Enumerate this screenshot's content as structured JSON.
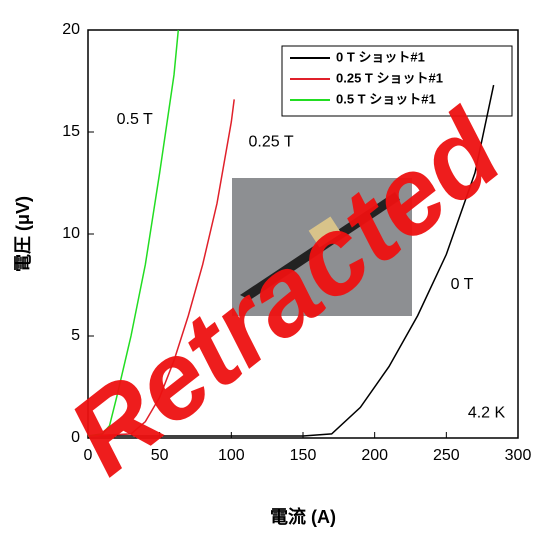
{
  "chart_data": {
    "type": "line",
    "xlabel": "電流 (A)",
    "ylabel": "電圧 (μV)",
    "xlim": [
      0,
      300
    ],
    "xticks": [
      0,
      50,
      100,
      150,
      200,
      250,
      300
    ],
    "ylim": [
      0,
      20
    ],
    "yticks": [
      0,
      5,
      10,
      15,
      20
    ],
    "legend": "upper right",
    "series": [
      {
        "name": "0 T ショット#1",
        "color": "#000000",
        "x": [
          0,
          50,
          100,
          150,
          170,
          190,
          210,
          230,
          250,
          270,
          283
        ],
        "values": [
          0.1,
          0.1,
          0.1,
          0.1,
          0.2,
          1.5,
          3.5,
          6,
          9,
          13,
          17.3
        ]
      },
      {
        "name": "0.25 T ショット#1",
        "color": "#e0202a",
        "x": [
          0,
          30,
          40,
          50,
          60,
          70,
          80,
          90,
          100,
          102
        ],
        "values": [
          0.1,
          0.2,
          0.8,
          2,
          3.8,
          6,
          8.5,
          11.5,
          15.5,
          16.6
        ]
      },
      {
        "name": "0.5 T ショット#1",
        "color": "#22dd22",
        "x": [
          0,
          10,
          15,
          20,
          30,
          40,
          50,
          60,
          63
        ],
        "values": [
          0.1,
          0.2,
          0.6,
          2,
          5,
          8.5,
          13,
          17.8,
          20
        ]
      }
    ],
    "annotations": [
      "0.5 T",
      "0.25 T",
      "0 T",
      "4.2 K"
    ],
    "watermark": "Retracted"
  }
}
